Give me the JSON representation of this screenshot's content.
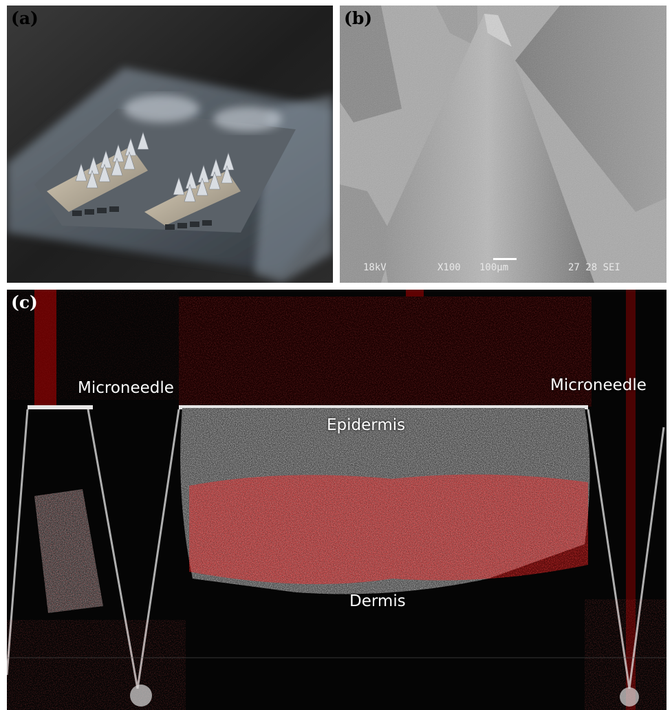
{
  "panels": {
    "a": {
      "label": "(a)"
    },
    "b": {
      "label": "(b)",
      "sem_info": {
        "kv": "18kV",
        "magnification": "X100",
        "scale": "100μm",
        "id": "27 28 SEI"
      }
    },
    "c": {
      "label": "(c)",
      "annotations": {
        "microneedle_left": "Microneedle",
        "microneedle_right": "Microneedle",
        "epidermis": "Epidermis",
        "dermis": "Dermis"
      }
    }
  },
  "colors": {
    "oct_signal": "#ff1a1a",
    "tissue_gray": "#9a9a9a",
    "background_dark": "#050505",
    "sem_gray": "#a6a6a6"
  }
}
